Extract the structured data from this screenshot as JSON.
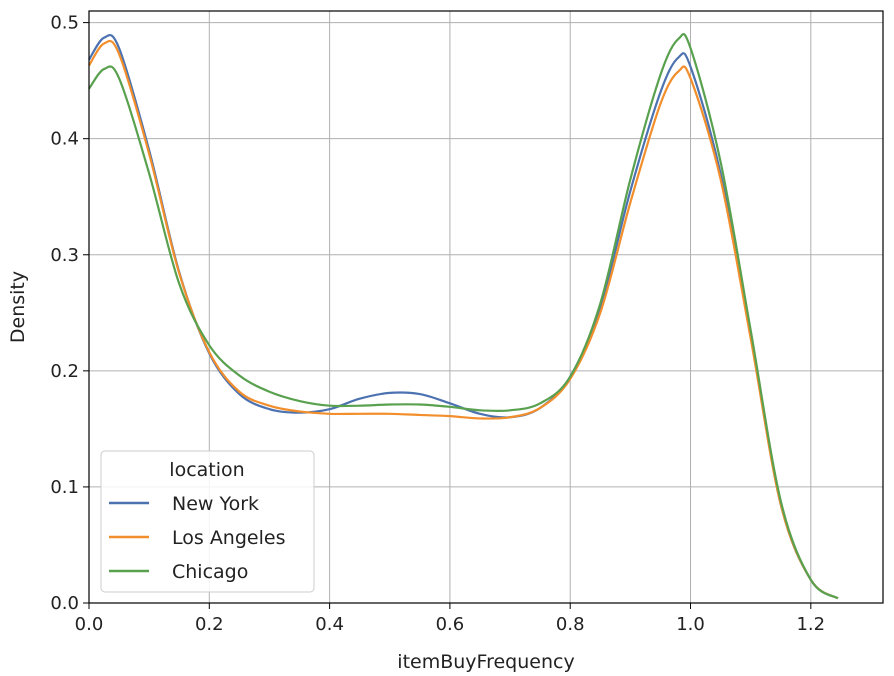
{
  "chart_data": {
    "type": "line",
    "title": "",
    "xlabel": "itemBuyFrequency",
    "ylabel": "Density",
    "xlim": [
      0.0,
      1.32
    ],
    "ylim": [
      0.0,
      0.51
    ],
    "xticks": [
      0.0,
      0.2,
      0.4,
      0.6,
      0.8,
      1.0,
      1.2
    ],
    "xtick_labels": [
      "0.0",
      "0.2",
      "0.4",
      "0.6",
      "0.8",
      "1.0",
      "1.2"
    ],
    "yticks": [
      0.0,
      0.1,
      0.2,
      0.3,
      0.4,
      0.5
    ],
    "ytick_labels": [
      "0.0",
      "0.1",
      "0.2",
      "0.3",
      "0.4",
      "0.5"
    ],
    "grid": true,
    "legend": {
      "title": "location",
      "placement": "lower-left"
    },
    "series": [
      {
        "name": "New York",
        "color": "#4c72b0",
        "x": [
          0.0,
          0.025,
          0.05,
          0.1,
          0.15,
          0.2,
          0.25,
          0.3,
          0.35,
          0.4,
          0.45,
          0.5,
          0.55,
          0.6,
          0.65,
          0.7,
          0.75,
          0.8,
          0.85,
          0.9,
          0.95,
          0.98,
          1.0,
          1.05,
          1.1,
          1.15,
          1.2,
          1.245
        ],
        "y": [
          0.468,
          0.487,
          0.478,
          0.39,
          0.285,
          0.215,
          0.18,
          0.167,
          0.164,
          0.167,
          0.176,
          0.181,
          0.18,
          0.172,
          0.163,
          0.16,
          0.168,
          0.195,
          0.255,
          0.355,
          0.44,
          0.47,
          0.462,
          0.37,
          0.23,
          0.085,
          0.02,
          0.004
        ]
      },
      {
        "name": "Los Angeles",
        "color": "#f28e2b",
        "x": [
          0.0,
          0.025,
          0.05,
          0.1,
          0.15,
          0.2,
          0.25,
          0.3,
          0.35,
          0.4,
          0.45,
          0.5,
          0.55,
          0.6,
          0.65,
          0.7,
          0.75,
          0.8,
          0.85,
          0.9,
          0.95,
          0.98,
          1.0,
          1.05,
          1.1,
          1.15,
          1.2,
          1.245
        ],
        "y": [
          0.463,
          0.482,
          0.473,
          0.387,
          0.284,
          0.216,
          0.182,
          0.17,
          0.165,
          0.163,
          0.163,
          0.163,
          0.162,
          0.161,
          0.159,
          0.16,
          0.168,
          0.193,
          0.25,
          0.345,
          0.43,
          0.458,
          0.452,
          0.365,
          0.228,
          0.085,
          0.02,
          0.004
        ]
      },
      {
        "name": "Chicago",
        "color": "#59a14f",
        "x": [
          0.0,
          0.025,
          0.05,
          0.1,
          0.15,
          0.2,
          0.25,
          0.3,
          0.35,
          0.4,
          0.45,
          0.5,
          0.55,
          0.6,
          0.65,
          0.7,
          0.75,
          0.8,
          0.85,
          0.9,
          0.95,
          0.98,
          1.0,
          1.05,
          1.1,
          1.15,
          1.2,
          1.245
        ],
        "y": [
          0.443,
          0.46,
          0.452,
          0.37,
          0.275,
          0.222,
          0.196,
          0.182,
          0.174,
          0.17,
          0.17,
          0.171,
          0.171,
          0.169,
          0.166,
          0.166,
          0.172,
          0.195,
          0.258,
          0.365,
          0.455,
          0.486,
          0.478,
          0.38,
          0.235,
          0.088,
          0.02,
          0.004
        ]
      }
    ]
  }
}
